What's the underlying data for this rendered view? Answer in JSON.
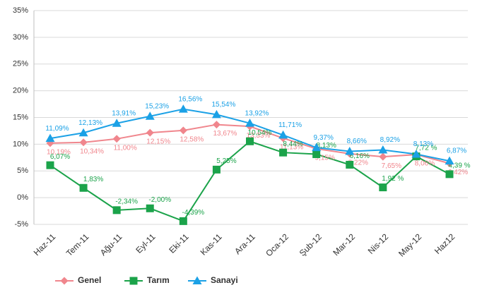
{
  "chart_data": {
    "type": "line",
    "categories": [
      "Haz-11",
      "Tem-11",
      "Ağu-11",
      "Eyl-11",
      "Eki-11",
      "Kas-11",
      "Ara-11",
      "Oca-12",
      "Şub-12",
      "Mar-12",
      "Nis-12",
      "May-12",
      "Haz12"
    ],
    "series": [
      {
        "name": "Genel",
        "color": "#f0868d",
        "marker": "diamond",
        "values": [
          10.19,
          10.34,
          11.0,
          12.15,
          12.58,
          13.67,
          13.33,
          11.13,
          9.15,
          8.22,
          7.65,
          8.06,
          6.42
        ],
        "value_labels": [
          "10,19%",
          "10,34%",
          "11,00%",
          "12,15%",
          "12,58%",
          "13,67%",
          "13,33%",
          "11,13%",
          "9,15%",
          "8,22%",
          "7,65%",
          "8,06%",
          "6,42%"
        ]
      },
      {
        "name": "Tarım",
        "color": "#1ba34a",
        "marker": "square",
        "values": [
          6.07,
          1.83,
          -2.34,
          -2.0,
          -4.39,
          5.25,
          10.54,
          8.44,
          8.13,
          6.16,
          1.92,
          7.72,
          4.39
        ],
        "value_labels": [
          "6,07%",
          "1,83%",
          "-2,34%",
          "-2,00%",
          "-4,39%",
          "5,25%",
          "10,54%",
          "8,44%",
          "8,13%",
          "6,16%",
          "1,92 %",
          "7,72 %",
          "4,39 %"
        ]
      },
      {
        "name": "Sanayi",
        "color": "#1ba1e6",
        "marker": "triangle",
        "values": [
          11.09,
          12.13,
          13.91,
          15.23,
          16.56,
          15.54,
          13.92,
          11.71,
          9.37,
          8.66,
          8.92,
          8.13,
          6.87
        ],
        "value_labels": [
          "11,09%",
          "12,13%",
          "13,91%",
          "15,23%",
          "16,56%",
          "15,54%",
          "13,92%",
          "11,71%",
          "9,37%",
          "8,66%",
          "8,92%",
          "8,13%",
          "6,87%"
        ]
      }
    ],
    "ylim": [
      -5,
      35
    ],
    "yticks": [
      {
        "value": -5,
        "label": "-5%"
      },
      {
        "value": 0,
        "label": "0%"
      },
      {
        "value": 5,
        "label": "5%"
      },
      {
        "value": 10,
        "label": "10%"
      },
      {
        "value": 15,
        "label": "15%"
      },
      {
        "value": 20,
        "label": "20%"
      },
      {
        "value": 25,
        "label": "25%"
      },
      {
        "value": 30,
        "label": "30%"
      },
      {
        "value": 35,
        "label": "35%"
      }
    ],
    "grid": true,
    "legend": "bottom"
  }
}
